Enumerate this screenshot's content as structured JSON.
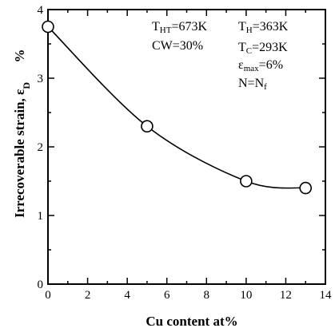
{
  "chart_data": {
    "type": "line",
    "x": [
      0,
      5,
      10,
      13
    ],
    "series": [
      {
        "values": [
          3.75,
          2.3,
          1.5,
          1.4
        ]
      }
    ],
    "xlabel": "Cu content   at%",
    "ylabel": "Irrecoverable strain, ε",
    "ylabel_sub": "D",
    "ylabel_unit": "%",
    "xlim": [
      0,
      14
    ],
    "ylim": [
      0,
      4
    ],
    "xticks": [
      0,
      2,
      4,
      6,
      8,
      10,
      12,
      14
    ],
    "yticks": [
      0,
      1,
      2,
      3,
      4
    ],
    "grid": false,
    "marker": "open-circle",
    "annotations": [
      {
        "main": "T",
        "sub": "HT",
        "rest": "=673K"
      },
      {
        "main": "CW=30%",
        "sub": "",
        "rest": ""
      },
      {
        "main": "T",
        "sub": "H",
        "rest": "=363K"
      },
      {
        "main": "T",
        "sub": "C",
        "rest": "=293K"
      },
      {
        "main": "ε",
        "sub": "max",
        "rest": "=6%"
      },
      {
        "main": "N=N",
        "sub": "f",
        "rest": ""
      }
    ]
  }
}
